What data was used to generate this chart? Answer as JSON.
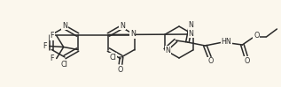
{
  "bg_color": "#fbf7ed",
  "line_color": "#2a2a2a",
  "text_color": "#2a2a2a",
  "line_width": 1.1,
  "font_size": 5.8,
  "figsize": [
    3.17,
    0.99
  ],
  "dpi": 100,
  "xlim": [
    0,
    317
  ],
  "ylim": [
    0,
    99
  ]
}
